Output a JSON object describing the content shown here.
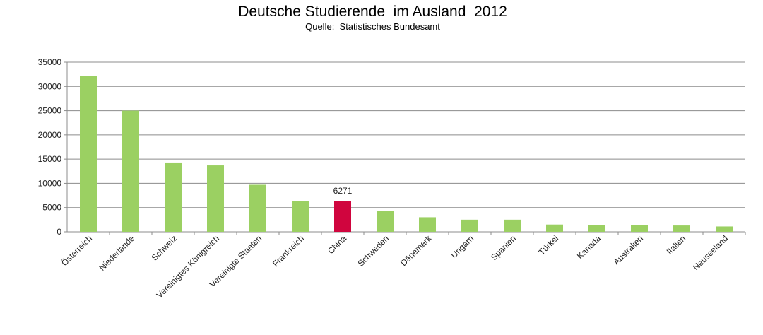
{
  "chart_data": {
    "type": "bar",
    "title": "Deutsche Studierende  im Ausland  2012",
    "subtitle": "Quelle:  Statistisches Bundesamt",
    "xlabel": "",
    "ylabel": "",
    "ylim": [
      0,
      35000
    ],
    "yticks": [
      0,
      5000,
      10000,
      15000,
      20000,
      25000,
      30000,
      35000
    ],
    "grid": true,
    "legend": "none",
    "categories": [
      "Österreich",
      "Niederlande",
      "Schweiz",
      "Vereinigtes Königreich",
      "Vereinigte Staaten",
      "Frankreich",
      "China",
      "Schweden",
      "Dänemark",
      "Ungarn",
      "Spanien",
      "Türkei",
      "Kanada",
      "Australien",
      "Italien",
      "Neuseeland"
    ],
    "values": [
      32100,
      25000,
      14300,
      13700,
      9700,
      6300,
      6271,
      4300,
      3000,
      2500,
      2500,
      1500,
      1400,
      1400,
      1300,
      1100
    ],
    "bar_color": "#9bd062",
    "highlight_color": "#d0053e",
    "highlight_index": 6,
    "data_labels": [
      {
        "index": 6,
        "text": "6271"
      }
    ]
  }
}
